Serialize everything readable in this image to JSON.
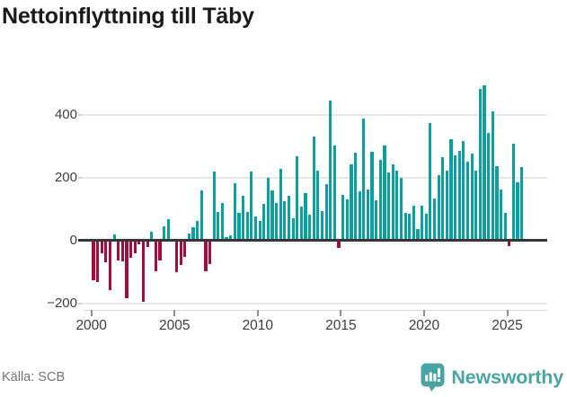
{
  "title": "Nettoinflyttning till Täby",
  "source": "Källa: SCB",
  "brand": {
    "name": "Newsworthy",
    "logo_icon": "speech-bubble-bar-chart"
  },
  "colors": {
    "positive_bar": "#0d9ea0",
    "negative_bar": "#9f0e43",
    "zero_line": "#363636",
    "gridline": "#e7e7e7",
    "brand_teal": "#4aa4a2",
    "title_text": "#1a1a1a",
    "axis_text": "#3d3d3d",
    "source_text": "#6f7377"
  },
  "chart_data": {
    "type": "bar",
    "title": "Nettoinflyttning till Täby",
    "xlabel": "",
    "ylabel": "",
    "y_ticks": [
      400,
      200,
      0,
      -200
    ],
    "y_tick_labels": [
      "400",
      "200",
      "0",
      "−200"
    ],
    "x_tick_labels": [
      "2000",
      "2005",
      "2010",
      "2015",
      "2020",
      "2025"
    ],
    "ylim": [
      -250,
      550
    ],
    "grid": true,
    "legend": false,
    "quarters": [
      "2000 Q1",
      "2000 Q2",
      "2000 Q3",
      "2000 Q4",
      "2001 Q1",
      "2001 Q2",
      "2001 Q3",
      "2001 Q4",
      "2002 Q1",
      "2002 Q2",
      "2002 Q3",
      "2002 Q4",
      "2003 Q1",
      "2003 Q2",
      "2003 Q3",
      "2003 Q4",
      "2004 Q1",
      "2004 Q2",
      "2004 Q3",
      "2004 Q4",
      "2005 Q1",
      "2005 Q2",
      "2005 Q3",
      "2005 Q4",
      "2006 Q1",
      "2006 Q2",
      "2006 Q3",
      "2006 Q4",
      "2007 Q1",
      "2007 Q2",
      "2007 Q3",
      "2007 Q4",
      "2008 Q1",
      "2008 Q2",
      "2008 Q3",
      "2008 Q4",
      "2009 Q1",
      "2009 Q2",
      "2009 Q3",
      "2009 Q4",
      "2010 Q1",
      "2010 Q2",
      "2010 Q3",
      "2010 Q4",
      "2011 Q1",
      "2011 Q2",
      "2011 Q3",
      "2011 Q4",
      "2012 Q1",
      "2012 Q2",
      "2012 Q3",
      "2012 Q4",
      "2013 Q1",
      "2013 Q2",
      "2013 Q3",
      "2013 Q4",
      "2014 Q1",
      "2014 Q2",
      "2014 Q3",
      "2014 Q4",
      "2015 Q1",
      "2015 Q2",
      "2015 Q3",
      "2015 Q4",
      "2016 Q1",
      "2016 Q2",
      "2016 Q3",
      "2016 Q4",
      "2017 Q1",
      "2017 Q2",
      "2017 Q3",
      "2017 Q4",
      "2018 Q1",
      "2018 Q2",
      "2018 Q3",
      "2018 Q4",
      "2019 Q1",
      "2019 Q2",
      "2019 Q3",
      "2019 Q4",
      "2020 Q1",
      "2020 Q2",
      "2020 Q3",
      "2020 Q4",
      "2021 Q1",
      "2021 Q2",
      "2021 Q3",
      "2021 Q4",
      "2022 Q1",
      "2022 Q2",
      "2022 Q3",
      "2022 Q4",
      "2023 Q1",
      "2023 Q2",
      "2023 Q3",
      "2023 Q4",
      "2024 Q1",
      "2024 Q2",
      "2024 Q3",
      "2024 Q4",
      "2025 Q1",
      "2025 Q2",
      "2025 Q3",
      "2025 Q4"
    ],
    "values": [
      -126,
      -133,
      -42,
      -69,
      -157,
      19,
      -64,
      -66,
      -183,
      -54,
      -40,
      -11,
      -195,
      -21,
      27,
      -97,
      -64,
      44,
      67,
      5,
      -102,
      -78,
      -51,
      22,
      41,
      63,
      160,
      -99,
      -76,
      219,
      91,
      120,
      10,
      15,
      181,
      89,
      141,
      91,
      219,
      77,
      63,
      117,
      198,
      158,
      120,
      229,
      124,
      141,
      72,
      268,
      108,
      151,
      82,
      330,
      222,
      93,
      179,
      446,
      301,
      -23,
      146,
      131,
      241,
      279,
      157,
      387,
      163,
      281,
      127,
      257,
      301,
      217,
      243,
      222,
      198,
      89,
      84,
      111,
      36,
      111,
      84,
      374,
      134,
      208,
      265,
      222,
      322,
      270,
      284,
      317,
      251,
      276,
      222,
      481,
      493,
      343,
      412,
      236,
      162,
      89,
      -19,
      308,
      186,
      233
    ]
  }
}
